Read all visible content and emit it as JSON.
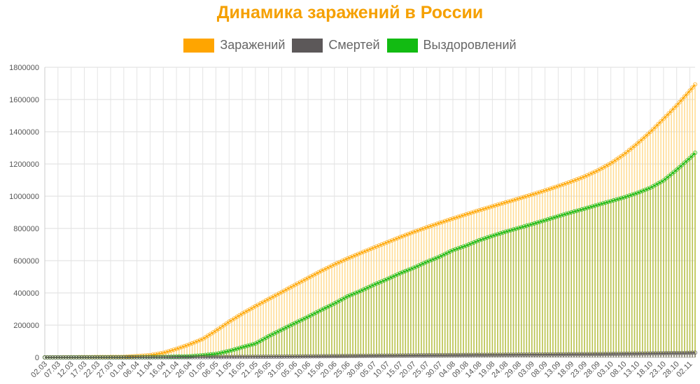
{
  "page": {
    "title": "Динамика заражений в России",
    "legend": [
      {
        "name": "Заражений",
        "color": "#ffa500"
      },
      {
        "name": "Смертей",
        "color": "#5c5859"
      },
      {
        "name": "Выздоровлений",
        "color": "#12bb12"
      }
    ]
  },
  "chart_data": {
    "type": "line",
    "title": "Динамика заражений в России",
    "ylim": [
      0,
      1800000
    ],
    "yticks": [
      0,
      200000,
      400000,
      600000,
      800000,
      1000000,
      1200000,
      1400000,
      1600000,
      1800000
    ],
    "xticks": [
      "02.03",
      "07.03",
      "12.03",
      "17.03",
      "22.03",
      "27.03",
      "01.04",
      "06.04",
      "11.04",
      "16.04",
      "21.04",
      "26.04",
      "01.05",
      "06.05",
      "11.05",
      "16.05",
      "21.05",
      "26.05",
      "31.05",
      "05.06",
      "10.06",
      "15.06",
      "20.06",
      "25.06",
      "30.06",
      "05.07",
      "10.07",
      "15.07",
      "20.07",
      "25.07",
      "30.07",
      "04.08",
      "09.08",
      "14.08",
      "19.08",
      "24.08",
      "29.08",
      "03.09",
      "08.09",
      "13.09",
      "18.09",
      "23.09",
      "28.09",
      "03.10",
      "08.10",
      "13.10",
      "18.10",
      "23.10",
      "28.10",
      "02.11"
    ],
    "x_start": "02.03",
    "x_end": "04.11",
    "grid": true,
    "legend_position": "top",
    "series": [
      {
        "name": "Заражений",
        "color": "#ffa500",
        "keypoints": [
          {
            "date": "02.03",
            "value": 3
          },
          {
            "date": "01.04",
            "value": 2777
          },
          {
            "date": "11.04",
            "value": 13584
          },
          {
            "date": "16.04",
            "value": 27938
          },
          {
            "date": "21.04",
            "value": 52763
          },
          {
            "date": "26.04",
            "value": 80949
          },
          {
            "date": "01.05",
            "value": 114431
          },
          {
            "date": "06.05",
            "value": 165929
          },
          {
            "date": "11.05",
            "value": 221344
          },
          {
            "date": "16.05",
            "value": 272043
          },
          {
            "date": "21.05",
            "value": 317554
          },
          {
            "date": "26.05",
            "value": 362342
          },
          {
            "date": "31.05",
            "value": 405843
          },
          {
            "date": "05.06",
            "value": 449834
          },
          {
            "date": "10.06",
            "value": 493023
          },
          {
            "date": "15.06",
            "value": 536484
          },
          {
            "date": "20.06",
            "value": 576952
          },
          {
            "date": "25.06",
            "value": 613994
          },
          {
            "date": "30.06",
            "value": 647849
          },
          {
            "date": "05.07",
            "value": 681251
          },
          {
            "date": "10.07",
            "value": 713936
          },
          {
            "date": "15.07",
            "value": 746369
          },
          {
            "date": "20.07",
            "value": 777486
          },
          {
            "date": "25.07",
            "value": 806720
          },
          {
            "date": "30.07",
            "value": 834499
          },
          {
            "date": "04.08",
            "value": 861423
          },
          {
            "date": "09.08",
            "value": 887536
          },
          {
            "date": "14.08",
            "value": 912823
          },
          {
            "date": "19.08",
            "value": 937321
          },
          {
            "date": "24.08",
            "value": 961493
          },
          {
            "date": "29.08",
            "value": 985346
          },
          {
            "date": "03.09",
            "value": 1009995
          },
          {
            "date": "08.09",
            "value": 1035789
          },
          {
            "date": "13.09",
            "value": 1062811
          },
          {
            "date": "18.09",
            "value": 1091186
          },
          {
            "date": "23.09",
            "value": 1122241
          },
          {
            "date": "28.09",
            "value": 1159573
          },
          {
            "date": "03.10",
            "value": 1204502
          },
          {
            "date": "08.10",
            "value": 1260112
          },
          {
            "date": "13.10",
            "value": 1326178
          },
          {
            "date": "18.10",
            "value": 1399334
          },
          {
            "date": "23.10",
            "value": 1480646
          },
          {
            "date": "28.10",
            "value": 1563976
          },
          {
            "date": "02.11",
            "value": 1655038
          },
          {
            "date": "04.11",
            "value": 1693454
          }
        ]
      },
      {
        "name": "Смертей",
        "color": "#5c5859",
        "keypoints": [
          {
            "date": "02.03",
            "value": 0
          },
          {
            "date": "01.04",
            "value": 24
          },
          {
            "date": "01.05",
            "value": 1169
          },
          {
            "date": "01.06",
            "value": 4855
          },
          {
            "date": "01.07",
            "value": 9536
          },
          {
            "date": "01.08",
            "value": 14058
          },
          {
            "date": "01.09",
            "value": 17250
          },
          {
            "date": "01.10",
            "value": 20722
          },
          {
            "date": "01.11",
            "value": 27301
          },
          {
            "date": "04.11",
            "value": 29217
          }
        ]
      },
      {
        "name": "Выздоровлений",
        "color": "#12bb12",
        "keypoints": [
          {
            "date": "02.03",
            "value": 0
          },
          {
            "date": "01.04",
            "value": 190
          },
          {
            "date": "16.04",
            "value": 2304
          },
          {
            "date": "26.04",
            "value": 6767
          },
          {
            "date": "01.05",
            "value": 13220
          },
          {
            "date": "06.05",
            "value": 21327
          },
          {
            "date": "11.05",
            "value": 39801
          },
          {
            "date": "16.05",
            "value": 63166
          },
          {
            "date": "21.05",
            "value": 85392
          },
          {
            "date": "26.05",
            "value": 131129
          },
          {
            "date": "31.05",
            "value": 171883
          },
          {
            "date": "05.06",
            "value": 212680
          },
          {
            "date": "10.06",
            "value": 252140
          },
          {
            "date": "15.06",
            "value": 294306
          },
          {
            "date": "20.06",
            "value": 334356
          },
          {
            "date": "25.06",
            "value": 378957
          },
          {
            "date": "30.06",
            "value": 412650
          },
          {
            "date": "05.07",
            "value": 450750
          },
          {
            "date": "10.07",
            "value": 485376
          },
          {
            "date": "15.07",
            "value": 522375
          },
          {
            "date": "20.07",
            "value": 555129
          },
          {
            "date": "25.07",
            "value": 591982
          },
          {
            "date": "30.07",
            "value": 625153
          },
          {
            "date": "04.08",
            "value": 665221
          },
          {
            "date": "09.08",
            "value": 693422
          },
          {
            "date": "14.08",
            "value": 726788
          },
          {
            "date": "19.08",
            "value": 754175
          },
          {
            "date": "24.08",
            "value": 779581
          },
          {
            "date": "29.08",
            "value": 802942
          },
          {
            "date": "03.09",
            "value": 826353
          },
          {
            "date": "08.09",
            "value": 850924
          },
          {
            "date": "13.09",
            "value": 875971
          },
          {
            "date": "18.09",
            "value": 899929
          },
          {
            "date": "23.09",
            "value": 922615
          },
          {
            "date": "28.09",
            "value": 946104
          },
          {
            "date": "03.10",
            "value": 969373
          },
          {
            "date": "08.10",
            "value": 992856
          },
          {
            "date": "13.10",
            "value": 1020075
          },
          {
            "date": "18.10",
            "value": 1052127
          },
          {
            "date": "23.10",
            "value": 1097587
          },
          {
            "date": "28.10",
            "value": 1164283
          },
          {
            "date": "02.11",
            "value": 1236787
          },
          {
            "date": "04.11",
            "value": 1269322
          }
        ]
      }
    ]
  }
}
